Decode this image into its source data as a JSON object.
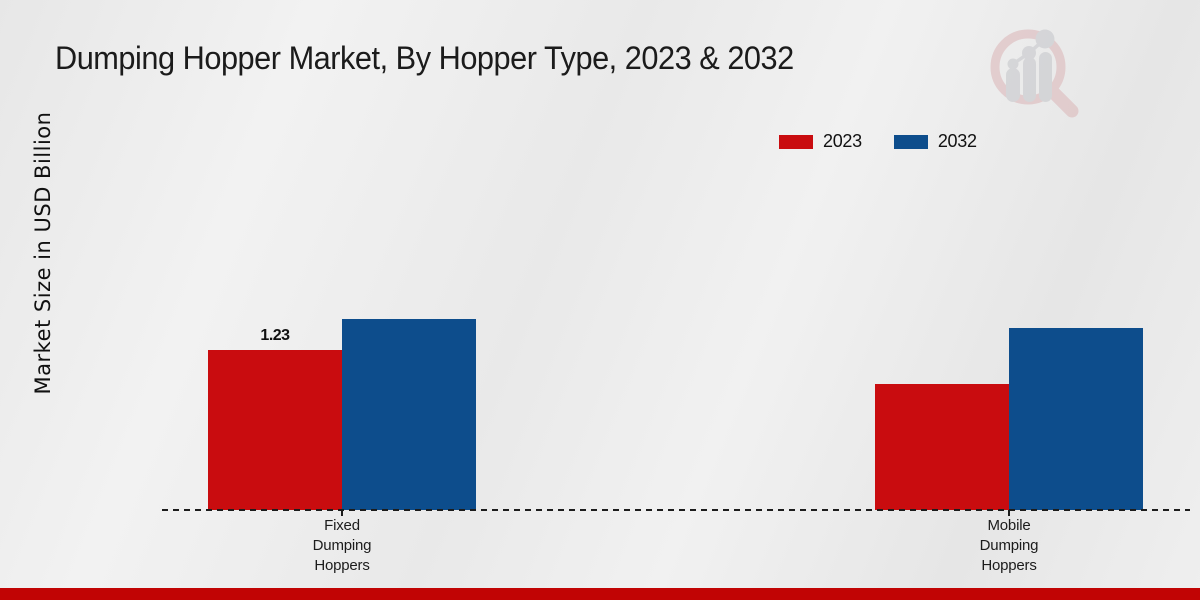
{
  "chart_data": {
    "type": "bar",
    "title": "Dumping Hopper Market, By Hopper Type, 2023 & 2032",
    "ylabel": "Market Size in USD Billion",
    "xlabel": "",
    "categories": [
      "Fixed Dumping Hoppers",
      "Mobile Dumping Hoppers"
    ],
    "xtick_labels": [
      "Fixed\nDumping\nHoppers",
      "Mobile\nDumping\nHoppers"
    ],
    "series": [
      {
        "name": "2023",
        "color": "#c90c0f",
        "values": [
          1.23,
          0.97
        ]
      },
      {
        "name": "2032",
        "color": "#0d4d8c",
        "values": [
          1.47,
          1.4
        ]
      }
    ],
    "data_labels": [
      {
        "series_index": 0,
        "category_index": 0,
        "text": "1.23"
      }
    ],
    "ylim": [
      0,
      1.6
    ],
    "grid": false,
    "y_axis_ticks_visible": false,
    "legend_position": "top-right",
    "baseline_style": "dashed"
  },
  "watermark": {
    "name": "magnifier-bar-chart-logo"
  },
  "footer": {
    "color": "#c10404"
  }
}
